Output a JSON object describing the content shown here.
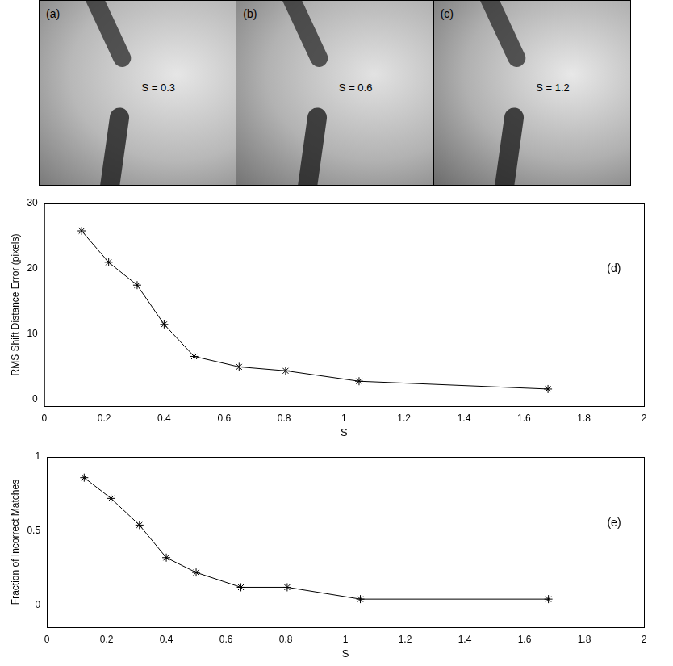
{
  "panels": [
    {
      "label": "(a)",
      "text": "S = 0.3"
    },
    {
      "label": "(b)",
      "text": "S = 0.6"
    },
    {
      "label": "(c)",
      "text": "S = 1.2"
    }
  ],
  "chart_data": [
    {
      "type": "line",
      "x_label": "S",
      "y_label": "RMS Shift Distance Error (pixels)",
      "x": [
        0.125,
        0.215,
        0.31,
        0.4,
        0.5,
        0.65,
        0.805,
        1.05,
        1.68
      ],
      "series": [
        {
          "name": "RMS Shift Distance Error",
          "color": "#000000",
          "marker": "star",
          "line_style": "solid",
          "values": [
            25.8,
            21.0,
            17.5,
            11.5,
            6.6,
            5.0,
            4.4,
            2.8,
            1.6
          ]
        }
      ],
      "xlim": [
        0,
        2
      ],
      "xticks": [
        0,
        0.2,
        0.4,
        0.6,
        0.8,
        1,
        1.2,
        1.4,
        1.6,
        1.8,
        2
      ],
      "ylim": [
        -1,
        30
      ],
      "yticks": [
        0,
        10,
        20,
        30
      ],
      "grid": false,
      "annotations": [
        {
          "text": "(d)",
          "x": 1.9,
          "y": 20
        }
      ]
    },
    {
      "type": "line",
      "x_label": "S",
      "y_label": "Fraction of Incorrect Matches",
      "x": [
        0.125,
        0.215,
        0.31,
        0.4,
        0.5,
        0.65,
        0.805,
        1.05,
        1.68
      ],
      "series": [
        {
          "name": "Fraction of Incorrect Matches",
          "color": "#000000",
          "marker": "star",
          "line_style": "solid",
          "values": [
            0.86,
            0.72,
            0.54,
            0.32,
            0.22,
            0.12,
            0.12,
            0.04,
            0.04
          ]
        }
      ],
      "xlim": [
        0,
        2
      ],
      "xticks": [
        0,
        0.2,
        0.4,
        0.6,
        0.8,
        1,
        1.2,
        1.4,
        1.6,
        1.8,
        2
      ],
      "ylim": [
        -0.15,
        1
      ],
      "yticks": [
        0,
        0.5,
        1
      ],
      "grid": false,
      "annotations": [
        {
          "text": "(e)",
          "x": 1.9,
          "y": 0.55
        }
      ]
    }
  ]
}
